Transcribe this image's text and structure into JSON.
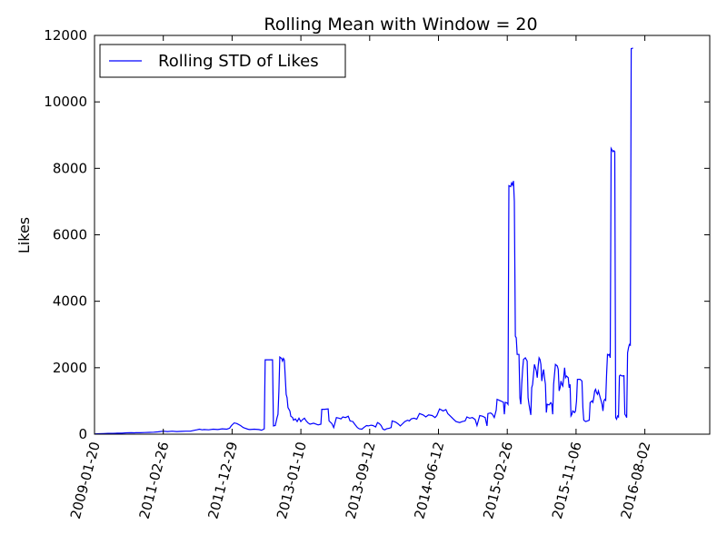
{
  "chart_data": {
    "type": "line",
    "title": "Rolling Mean with Window = 20",
    "xlabel": "",
    "ylabel": "Likes",
    "ylim": [
      0,
      12000
    ],
    "yticks": [
      0,
      2000,
      4000,
      6000,
      8000,
      10000,
      12000
    ],
    "xticks": [
      "2009-01-20",
      "2011-02-26",
      "2011-12-29",
      "2013-01-10",
      "2013-09-12",
      "2014-06-12",
      "2015-02-26",
      "2015-11-06",
      "2016-08-02"
    ],
    "legend": {
      "position": "top-left",
      "entries": [
        "Rolling STD of Likes"
      ]
    },
    "grid": false,
    "series": [
      {
        "name": "Rolling STD of Likes",
        "color": "#0000ff",
        "points": [
          [
            0,
            5
          ],
          [
            2,
            10
          ],
          [
            5,
            15
          ],
          [
            10,
            20
          ],
          [
            15,
            25
          ],
          [
            20,
            25
          ],
          [
            25,
            30
          ],
          [
            30,
            30
          ],
          [
            35,
            40
          ],
          [
            40,
            45
          ],
          [
            44,
            40
          ],
          [
            45,
            45
          ],
          [
            50,
            45
          ],
          [
            55,
            50
          ],
          [
            60,
            55
          ],
          [
            65,
            60
          ],
          [
            70,
            70
          ],
          [
            72,
            80
          ],
          [
            75,
            90
          ],
          [
            80,
            80
          ],
          [
            85,
            90
          ],
          [
            90,
            80
          ],
          [
            95,
            85
          ],
          [
            100,
            90
          ],
          [
            105,
            90
          ],
          [
            110,
            120
          ],
          [
            112,
            130
          ],
          [
            115,
            150
          ],
          [
            118,
            130
          ],
          [
            120,
            140
          ],
          [
            125,
            130
          ],
          [
            130,
            150
          ],
          [
            135,
            140
          ],
          [
            140,
            160
          ],
          [
            145,
            150
          ],
          [
            148,
            180
          ],
          [
            150,
            260
          ],
          [
            153,
            340
          ],
          [
            156,
            320
          ],
          [
            160,
            260
          ],
          [
            163,
            200
          ],
          [
            165,
            180
          ],
          [
            168,
            150
          ],
          [
            170,
            140
          ],
          [
            175,
            150
          ],
          [
            180,
            140
          ],
          [
            183,
            120
          ],
          [
            186,
            160
          ],
          [
            187,
            2240
          ],
          [
            195,
            2240
          ],
          [
            196,
            250
          ],
          [
            198,
            260
          ],
          [
            200,
            500
          ],
          [
            201,
            600
          ],
          [
            202,
            1300
          ],
          [
            203,
            2320
          ],
          [
            205,
            2280
          ],
          [
            206,
            2200
          ],
          [
            207,
            2280
          ],
          [
            208,
            2230
          ],
          [
            210,
            1200
          ],
          [
            211,
            1100
          ],
          [
            212,
            800
          ],
          [
            214,
            700
          ],
          [
            215,
            540
          ],
          [
            217,
            500
          ],
          [
            218,
            420
          ],
          [
            220,
            460
          ],
          [
            222,
            380
          ],
          [
            224,
            480
          ],
          [
            226,
            380
          ],
          [
            228,
            440
          ],
          [
            230,
            480
          ],
          [
            232,
            400
          ],
          [
            234,
            340
          ],
          [
            236,
            300
          ],
          [
            240,
            330
          ],
          [
            245,
            280
          ],
          [
            248,
            300
          ],
          [
            249,
            750
          ],
          [
            252,
            750
          ],
          [
            256,
            760
          ],
          [
            257,
            400
          ],
          [
            260,
            320
          ],
          [
            262,
            200
          ],
          [
            265,
            500
          ],
          [
            268,
            480
          ],
          [
            270,
            460
          ],
          [
            272,
            520
          ],
          [
            275,
            500
          ],
          [
            278,
            540
          ],
          [
            280,
            400
          ],
          [
            283,
            380
          ],
          [
            285,
            300
          ],
          [
            288,
            200
          ],
          [
            290,
            160
          ],
          [
            293,
            150
          ],
          [
            295,
            200
          ],
          [
            298,
            260
          ],
          [
            300,
            250
          ],
          [
            303,
            270
          ],
          [
            305,
            260
          ],
          [
            308,
            220
          ],
          [
            310,
            350
          ],
          [
            312,
            320
          ],
          [
            314,
            260
          ],
          [
            316,
            150
          ],
          [
            318,
            130
          ],
          [
            320,
            160
          ],
          [
            323,
            180
          ],
          [
            325,
            200
          ],
          [
            326,
            400
          ],
          [
            328,
            380
          ],
          [
            330,
            360
          ],
          [
            333,
            300
          ],
          [
            335,
            250
          ],
          [
            337,
            300
          ],
          [
            340,
            380
          ],
          [
            343,
            420
          ],
          [
            345,
            400
          ],
          [
            347,
            460
          ],
          [
            350,
            480
          ],
          [
            353,
            450
          ],
          [
            356,
            620
          ],
          [
            360,
            580
          ],
          [
            363,
            520
          ],
          [
            366,
            580
          ],
          [
            370,
            560
          ],
          [
            373,
            500
          ],
          [
            375,
            560
          ],
          [
            378,
            760
          ],
          [
            382,
            700
          ],
          [
            385,
            740
          ],
          [
            387,
            620
          ],
          [
            390,
            540
          ],
          [
            393,
            460
          ],
          [
            396,
            380
          ],
          [
            400,
            350
          ],
          [
            403,
            380
          ],
          [
            406,
            400
          ],
          [
            408,
            520
          ],
          [
            411,
            480
          ],
          [
            414,
            500
          ],
          [
            417,
            440
          ],
          [
            419,
            260
          ],
          [
            422,
            560
          ],
          [
            425,
            540
          ],
          [
            428,
            500
          ],
          [
            430,
            250
          ],
          [
            431,
            620
          ],
          [
            434,
            640
          ],
          [
            436,
            600
          ],
          [
            438,
            500
          ],
          [
            440,
            720
          ],
          [
            441,
            1050
          ],
          [
            445,
            1000
          ],
          [
            448,
            960
          ],
          [
            449,
            600
          ],
          [
            450,
            960
          ],
          [
            452,
            940
          ],
          [
            453,
            900
          ],
          [
            454,
            7480
          ],
          [
            456,
            7450
          ],
          [
            457,
            7560
          ],
          [
            458,
            7500
          ],
          [
            459,
            7620
          ],
          [
            460,
            7000
          ],
          [
            461,
            2950
          ],
          [
            462,
            2900
          ],
          [
            463,
            2400
          ],
          [
            465,
            2400
          ],
          [
            466,
            1100
          ],
          [
            467,
            900
          ],
          [
            468,
            1500
          ],
          [
            469,
            1950
          ],
          [
            470,
            2250
          ],
          [
            472,
            2300
          ],
          [
            474,
            2200
          ],
          [
            475,
            1100
          ],
          [
            476,
            900
          ],
          [
            478,
            580
          ],
          [
            479,
            1400
          ],
          [
            480,
            1500
          ],
          [
            481,
            1800
          ],
          [
            482,
            2100
          ],
          [
            484,
            1900
          ],
          [
            485,
            1700
          ],
          [
            486,
            2050
          ],
          [
            487,
            2300
          ],
          [
            488,
            2250
          ],
          [
            489,
            2100
          ],
          [
            490,
            1600
          ],
          [
            491,
            1800
          ],
          [
            492,
            1950
          ],
          [
            493,
            1700
          ],
          [
            494,
            1500
          ],
          [
            495,
            650
          ],
          [
            496,
            900
          ],
          [
            498,
            880
          ],
          [
            500,
            950
          ],
          [
            501,
            900
          ],
          [
            502,
            600
          ],
          [
            503,
            1500
          ],
          [
            504,
            1800
          ],
          [
            505,
            2100
          ],
          [
            507,
            2050
          ],
          [
            508,
            1950
          ],
          [
            509,
            1300
          ],
          [
            510,
            1400
          ],
          [
            511,
            1600
          ],
          [
            512,
            1500
          ],
          [
            513,
            1450
          ],
          [
            514,
            1700
          ],
          [
            515,
            2000
          ],
          [
            516,
            1700
          ],
          [
            517,
            1750
          ],
          [
            519,
            1700
          ],
          [
            520,
            1400
          ],
          [
            521,
            1500
          ],
          [
            522,
            550
          ],
          [
            523,
            600
          ],
          [
            524,
            700
          ],
          [
            526,
            650
          ],
          [
            527,
            700
          ],
          [
            528,
            1000
          ],
          [
            529,
            1650
          ],
          [
            532,
            1650
          ],
          [
            534,
            1600
          ],
          [
            535,
            800
          ],
          [
            536,
            420
          ],
          [
            538,
            380
          ],
          [
            540,
            400
          ],
          [
            542,
            420
          ],
          [
            543,
            950
          ],
          [
            545,
            1000
          ],
          [
            546,
            960
          ],
          [
            547,
            1100
          ],
          [
            548,
            1300
          ],
          [
            549,
            1350
          ],
          [
            550,
            1250
          ],
          [
            551,
            1200
          ],
          [
            552,
            1300
          ],
          [
            553,
            1200
          ],
          [
            554,
            1100
          ],
          [
            555,
            1000
          ],
          [
            556,
            900
          ],
          [
            557,
            700
          ],
          [
            558,
            1000
          ],
          [
            559,
            1050
          ],
          [
            560,
            1020
          ],
          [
            561,
            1800
          ],
          [
            562,
            2400
          ],
          [
            563,
            2380
          ],
          [
            564,
            2400
          ],
          [
            565,
            2300
          ],
          [
            566,
            8600
          ],
          [
            567,
            8550
          ],
          [
            568,
            8500
          ],
          [
            569,
            8530
          ],
          [
            570,
            8500
          ],
          [
            571,
            500
          ],
          [
            572,
            450
          ],
          [
            573,
            550
          ],
          [
            574,
            520
          ],
          [
            575,
            1750
          ],
          [
            576,
            1780
          ],
          [
            578,
            1750
          ],
          [
            580,
            1760
          ],
          [
            581,
            600
          ],
          [
            582,
            560
          ],
          [
            583,
            500
          ],
          [
            584,
            2450
          ],
          [
            585,
            2600
          ],
          [
            586,
            2700
          ],
          [
            587,
            2680
          ],
          [
            588,
            11600
          ],
          [
            590,
            11620
          ]
        ]
      }
    ]
  }
}
